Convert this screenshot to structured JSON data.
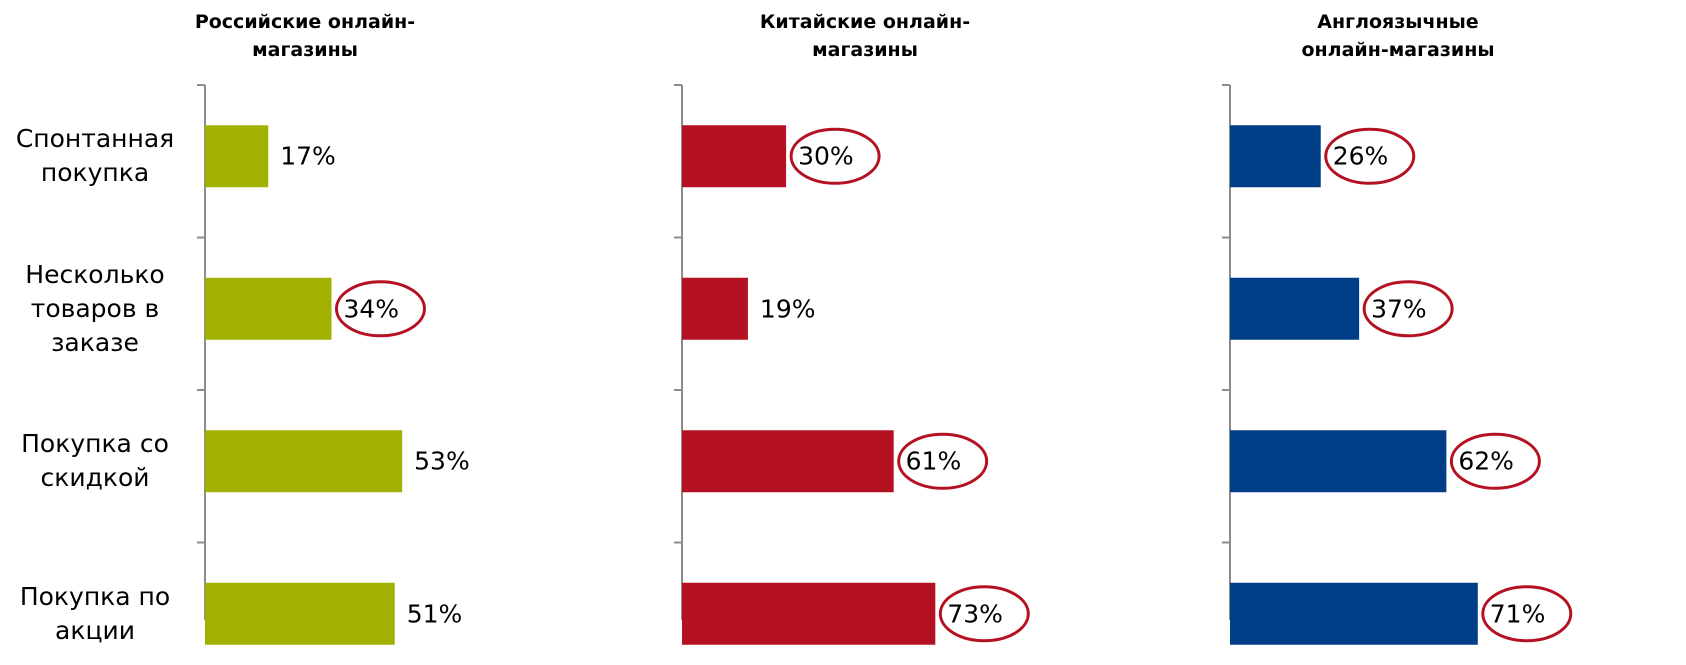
{
  "chart_data": [
    {
      "type": "bar",
      "orientation": "horizontal",
      "title": "Российские онлайн-\nмагазины",
      "categories": [
        "Спонтанная\nпокупка",
        "Несколько\nтоваров в\nзаказе",
        "Покупка со\nскидкой",
        "Покупка по\nакции"
      ],
      "values": [
        17,
        34,
        53,
        51
      ],
      "value_labels": [
        "17%",
        "34%",
        "53%",
        "51%"
      ],
      "color": "#a2b100",
      "circled": [
        false,
        true,
        false,
        false
      ]
    },
    {
      "type": "bar",
      "orientation": "horizontal",
      "title": "Китайские онлайн-\nмагазины",
      "values": [
        30,
        19,
        61,
        73
      ],
      "value_labels": [
        "30%",
        "19%",
        "61%",
        "73%"
      ],
      "color": "#b41222",
      "circled": [
        true,
        false,
        true,
        true
      ]
    },
    {
      "type": "bar",
      "orientation": "horizontal",
      "title": "Англоязычные\nонлайн-магазины",
      "values": [
        26,
        37,
        62,
        71
      ],
      "value_labels": [
        "26%",
        "37%",
        "62%",
        "71%"
      ],
      "color": "#003f87",
      "circled": [
        true,
        true,
        true,
        true
      ]
    }
  ]
}
